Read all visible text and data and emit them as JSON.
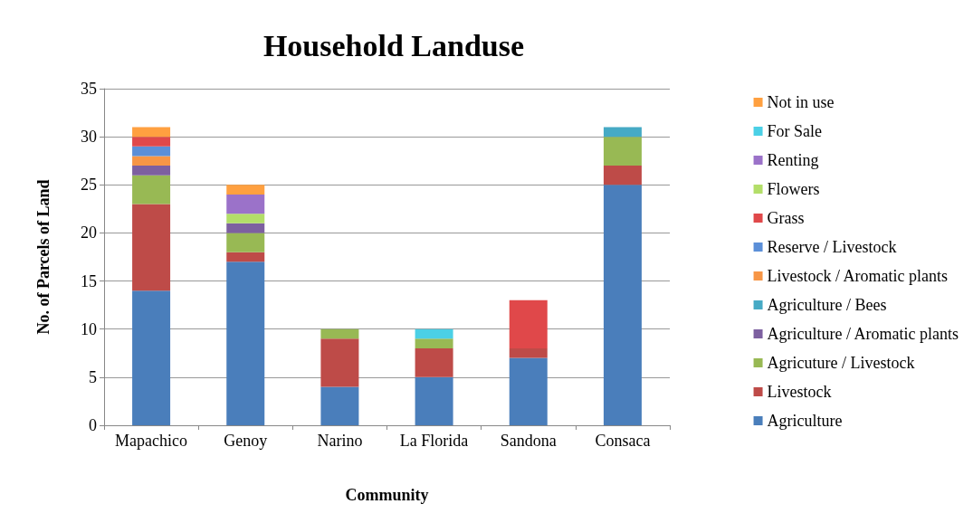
{
  "chart_data": {
    "type": "bar",
    "title": "Household Landuse",
    "xlabel": "Community",
    "ylabel": "No. of Parcels of Land",
    "categories": [
      "Mapachico",
      "Genoy",
      "Narino",
      "La Florida",
      "Sandona",
      "Consaca"
    ],
    "stacked": true,
    "grid": "y",
    "legend": "right",
    "ylim": [
      0,
      35
    ],
    "yticks": [
      0,
      5,
      10,
      15,
      20,
      25,
      30,
      35
    ],
    "series": [
      {
        "name": "Agriculture",
        "color": "#4a7ebb",
        "values": [
          14,
          17,
          4,
          5,
          7,
          25
        ]
      },
      {
        "name": "Livestock",
        "color": "#be4b48",
        "values": [
          9,
          1,
          5,
          3,
          1,
          2
        ]
      },
      {
        "name": "Agricuture / Livestock",
        "color": "#98b954",
        "values": [
          3,
          2,
          1,
          1,
          0,
          3
        ]
      },
      {
        "name": "Agriculture / Aromatic plants",
        "color": "#7d60a0",
        "values": [
          1,
          1,
          0,
          0,
          0,
          0
        ]
      },
      {
        "name": "Agriculture / Bees",
        "color": "#46aac5",
        "values": [
          0,
          0,
          0,
          0,
          0,
          1
        ]
      },
      {
        "name": "Livestock / Aromatic plants",
        "color": "#f79646",
        "values": [
          1,
          0,
          0,
          0,
          0,
          0
        ]
      },
      {
        "name": "Reserve / Livestock",
        "color": "#5b8fd8",
        "values": [
          1,
          0,
          0,
          0,
          0,
          0
        ]
      },
      {
        "name": "Grass",
        "color": "#e0484a",
        "values": [
          1,
          0,
          0,
          0,
          5,
          0
        ]
      },
      {
        "name": "Flowers",
        "color": "#b3de69",
        "values": [
          0,
          1,
          0,
          0,
          0,
          0
        ]
      },
      {
        "name": "Renting",
        "color": "#9b72c9",
        "values": [
          0,
          2,
          0,
          0,
          0,
          0
        ]
      },
      {
        "name": "For Sale",
        "color": "#4bd0e6",
        "values": [
          0,
          0,
          0,
          1,
          0,
          0
        ]
      },
      {
        "name": "Not in use",
        "color": "#ffa040",
        "values": [
          1,
          1,
          0,
          0,
          0,
          0
        ]
      }
    ]
  }
}
